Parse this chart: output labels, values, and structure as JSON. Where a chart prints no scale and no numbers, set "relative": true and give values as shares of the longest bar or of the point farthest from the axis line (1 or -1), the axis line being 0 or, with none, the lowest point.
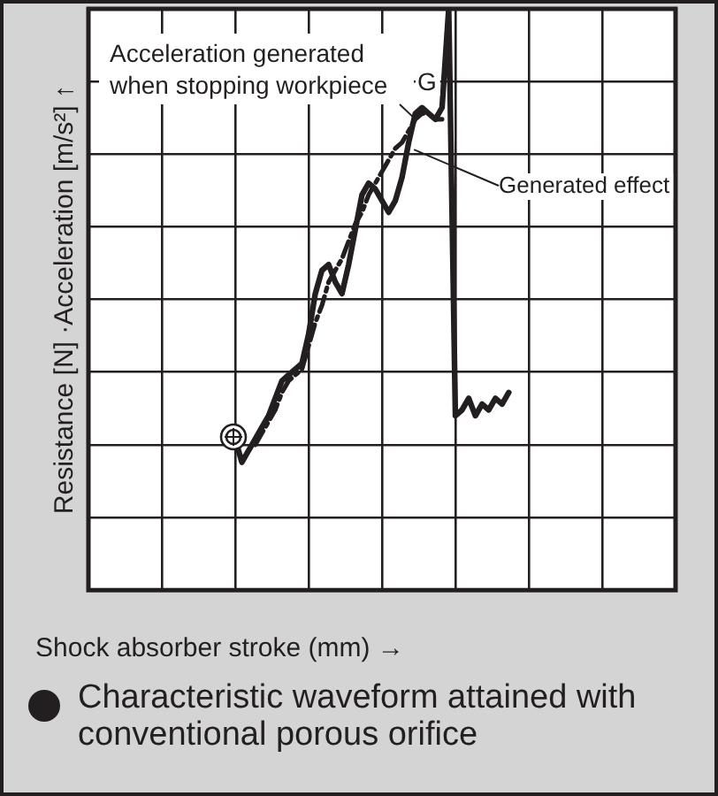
{
  "chart_data": {
    "type": "line",
    "relative": true,
    "xlabel": "Shock absorber stroke (mm) →",
    "ylabel": "Resistance [N] ·Acceleration [m/s²] ↑",
    "grid": true,
    "legend": false,
    "marker": "none",
    "categories": [
      null,
      null,
      null,
      null,
      null,
      null,
      null,
      null,
      null,
      null,
      null,
      null,
      null,
      null,
      null,
      null,
      null,
      null,
      null,
      null,
      null,
      null,
      null,
      null,
      null,
      null,
      null,
      null,
      null,
      null,
      null,
      null,
      null,
      null,
      null,
      null,
      null,
      null,
      null,
      null,
      null,
      null,
      null,
      null,
      null,
      null,
      null,
      null,
      null,
      null,
      null,
      null,
      null,
      null,
      null,
      null,
      null,
      null,
      null,
      null,
      null,
      null,
      null,
      null,
      null,
      null,
      null,
      null,
      null,
      null,
      null,
      null,
      null,
      null,
      null,
      null,
      null,
      null,
      null,
      null,
      null,
      null,
      null,
      null,
      null,
      null,
      null,
      null,
      null
    ],
    "series": [
      {
        "name": "Generated effect",
        "color": "#231f20",
        "line_style": "solid",
        "values": [
          null,
          null,
          null,
          null,
          null,
          null,
          null,
          null,
          null,
          null,
          null,
          null,
          null,
          null,
          null,
          null,
          null,
          null,
          null,
          null,
          null,
          null,
          0.26,
          0.22,
          0.24,
          0.26,
          0.28,
          0.3,
          0.33,
          0.36,
          0.37,
          0.38,
          0.39,
          0.44,
          0.51,
          0.55,
          0.56,
          0.53,
          0.51,
          0.56,
          0.62,
          0.68,
          0.7,
          0.69,
          0.67,
          0.65,
          0.67,
          0.71,
          0.77,
          0.82,
          0.83,
          0.82,
          0.81,
          0.83,
          1,
          0.3,
          0.31,
          0.33,
          0.3,
          0.32,
          0.31,
          0.33,
          0.32,
          0.34,
          null,
          null,
          null,
          null,
          null,
          null,
          null,
          null,
          null,
          null,
          null,
          null,
          null,
          null,
          null,
          null,
          null,
          null,
          null,
          null,
          null,
          null,
          null,
          null,
          null
        ]
      },
      {
        "name": "Acceleration generated when stopping workpiece",
        "color": "#231f20",
        "line_style": "dashed",
        "values": [
          null,
          null,
          null,
          null,
          null,
          null,
          null,
          null,
          null,
          null,
          null,
          null,
          null,
          null,
          null,
          null,
          null,
          null,
          null,
          null,
          null,
          null,
          null,
          null,
          null,
          0.25,
          0.27,
          0.29,
          0.31,
          0.34,
          0.36,
          0.37,
          0.38,
          0.42,
          0.46,
          0.49,
          0.53,
          0.55,
          0.57,
          0.6,
          0.63,
          0.65,
          0.68,
          0.7,
          0.72,
          0.74,
          0.76,
          0.77,
          0.79,
          0.81,
          0.82,
          0.82,
          0.81,
          0.81,
          null,
          null,
          null,
          null,
          null,
          null,
          null,
          null,
          null,
          null,
          null,
          null,
          null,
          null,
          null,
          null,
          null,
          null,
          null,
          null,
          null,
          null,
          null,
          null,
          null,
          null,
          null,
          null,
          null,
          null,
          null,
          null,
          null,
          null,
          null
        ]
      }
    ],
    "annotations": [
      "G",
      "Characteristic waveform attained with conventional porous orifice"
    ]
  }
}
